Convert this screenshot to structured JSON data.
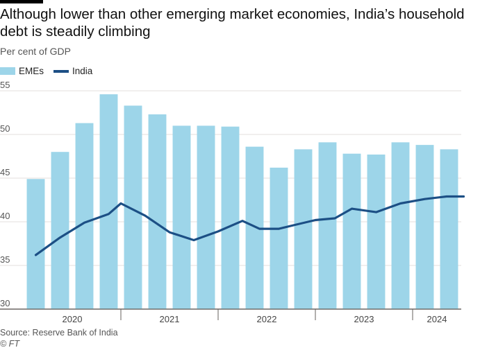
{
  "header": {
    "title": "Although lower than other emerging market economies, India’s household debt is steadily climbing",
    "subtitle": "Per cent of GDP"
  },
  "legend": {
    "items": [
      {
        "label": "EMEs",
        "kind": "bar"
      },
      {
        "label": "India",
        "kind": "line"
      }
    ]
  },
  "colors": {
    "bar": "#9dd5e9",
    "line": "#1c4f85",
    "grid": "#e3dfdc",
    "axis": "#66605c"
  },
  "footer": {
    "source": "Source: Reserve Bank of India",
    "credit": "© FT"
  },
  "chart_data": {
    "type": "bar",
    "title": "Although lower than other emerging market economies, India’s household debt is steadily climbing",
    "ylabel": "Per cent of GDP",
    "xlabel": "",
    "ylim": [
      30,
      55
    ],
    "yticks": [
      30,
      35,
      40,
      45,
      50,
      55
    ],
    "grid": true,
    "legend_position": "top-left",
    "x_tick_labels": [
      {
        "label": "2020",
        "at_index": 1.5
      },
      {
        "label": "2021",
        "at_index": 5.5
      },
      {
        "label": "2022",
        "at_index": 9.5
      },
      {
        "label": "2023",
        "at_index": 13.5
      },
      {
        "label": "2024",
        "at_index": 16.5
      }
    ],
    "year_boundaries": [
      3.5,
      7.5,
      11.5,
      15.5
    ],
    "series": [
      {
        "name": "EMEs",
        "type": "bar",
        "values": [
          44.9,
          48.0,
          51.3,
          54.6,
          53.3,
          52.3,
          51.0,
          51.0,
          50.9,
          48.6,
          46.2,
          48.3,
          49.1,
          47.8,
          47.7,
          49.1,
          48.8,
          48.3
        ]
      },
      {
        "name": "India",
        "type": "line",
        "values": [
          36.2,
          38.2,
          39.9,
          40.9,
          42.1,
          40.7,
          38.8,
          37.9,
          38.9,
          40.1,
          39.2,
          39.2,
          39.6,
          40.2,
          40.4,
          41.5,
          41.1,
          42.1,
          42.6,
          42.9,
          42.9
        ],
        "x_index": [
          0,
          1,
          2,
          3,
          3.5,
          4.5,
          5.5,
          6.5,
          7.5,
          8.5,
          9.2,
          10,
          10.6,
          11.5,
          12.3,
          13,
          14,
          15,
          16,
          16.9,
          17.6
        ]
      }
    ]
  }
}
